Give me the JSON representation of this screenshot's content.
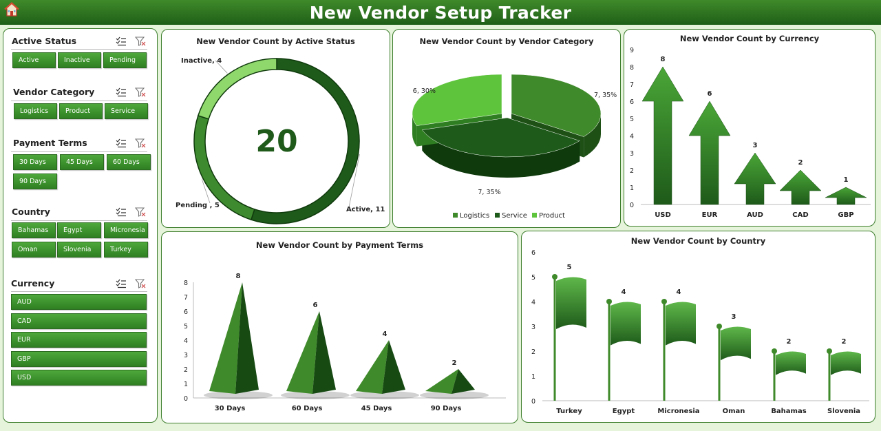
{
  "header": {
    "title": "New Vendor Setup Tracker"
  },
  "slicers": [
    {
      "title": "Active Status",
      "items": [
        "Active",
        "Inactive",
        "Pending"
      ]
    },
    {
      "title": "Vendor Category",
      "items": [
        "Logistics",
        "Product",
        "Service"
      ]
    },
    {
      "title": "Payment Terms",
      "items": [
        "30 Days",
        "45 Days",
        "60 Days",
        "90 Days"
      ]
    },
    {
      "title": "Country",
      "items": [
        "Bahamas",
        "Egypt",
        "Micronesia",
        "Oman",
        "Slovenia",
        "Turkey"
      ]
    },
    {
      "title": "Currency",
      "items": [
        "AUD",
        "CAD",
        "EUR",
        "GBP",
        "USD"
      ]
    }
  ],
  "colors": {
    "dark_green": "#1e5a1a",
    "mid_green": "#3f8a2a",
    "light_green": "#8fd86c",
    "bright_green": "#5ec43c"
  },
  "chart_data": [
    {
      "type": "pie",
      "title": "New Vendor Count by Active Status",
      "total": "20",
      "categories": [
        "Active",
        "Pending ",
        "Inactive"
      ],
      "values": [
        11,
        5,
        4
      ],
      "data_labels": [
        "Active, 11",
        "Pending , 5",
        "Inactive, 4"
      ]
    },
    {
      "type": "pie",
      "title": "New Vendor Count by Vendor Category",
      "categories": [
        "Logistics",
        "Service",
        "Product"
      ],
      "values": [
        7,
        7,
        6
      ],
      "data_labels": [
        "7, 35%",
        "7, 35%",
        "6, 30%"
      ],
      "legend": "bottom"
    },
    {
      "type": "bar",
      "title": "New Vendor Count by Currency",
      "categories": [
        "USD",
        "EUR",
        "AUD",
        "CAD",
        "GBP"
      ],
      "values": [
        8,
        6,
        3,
        2,
        1
      ],
      "ylim": [
        0,
        9
      ],
      "yticks": [
        0,
        1,
        2,
        3,
        4,
        5,
        6,
        7,
        8,
        9
      ]
    },
    {
      "type": "bar",
      "title": "New Vendor Count by Payment Terms",
      "categories": [
        "30 Days",
        "60 Days",
        "45 Days",
        "90 Days"
      ],
      "values": [
        8,
        6,
        4,
        2
      ],
      "ylim": [
        0,
        8
      ],
      "yticks": [
        0,
        1,
        2,
        3,
        4,
        5,
        6,
        7,
        8
      ]
    },
    {
      "type": "bar",
      "title": "New Vendor Count by Country",
      "categories": [
        "Turkey",
        "Egypt",
        "Micronesia",
        "Oman",
        "Bahamas",
        "Slovenia"
      ],
      "values": [
        5,
        4,
        4,
        3,
        2,
        2
      ],
      "ylim": [
        0,
        6
      ],
      "yticks": [
        0,
        1,
        2,
        3,
        4,
        5,
        6
      ]
    }
  ]
}
